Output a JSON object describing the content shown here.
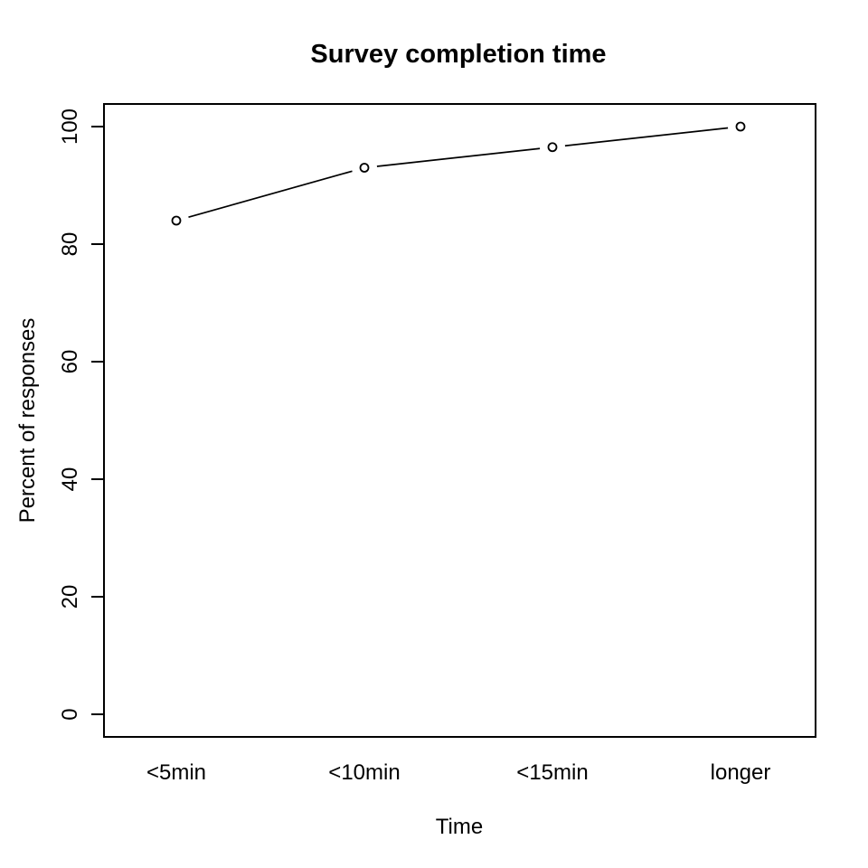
{
  "chart_data": {
    "type": "line",
    "title": "Survey completion time",
    "xlabel": "Time",
    "ylabel": "Percent of responses",
    "categories": [
      "<5min",
      "<10min",
      "<15min",
      "longer"
    ],
    "values": [
      84,
      93,
      96.5,
      100
    ],
    "ylim": [
      0,
      100
    ],
    "yticks": [
      0,
      20,
      40,
      60,
      80,
      100
    ],
    "marker": "open-circle",
    "line_style": "points-and-line-with-gaps",
    "grid": false,
    "legend": "none",
    "colors": {
      "stroke": "#000000",
      "background": "#ffffff"
    }
  }
}
